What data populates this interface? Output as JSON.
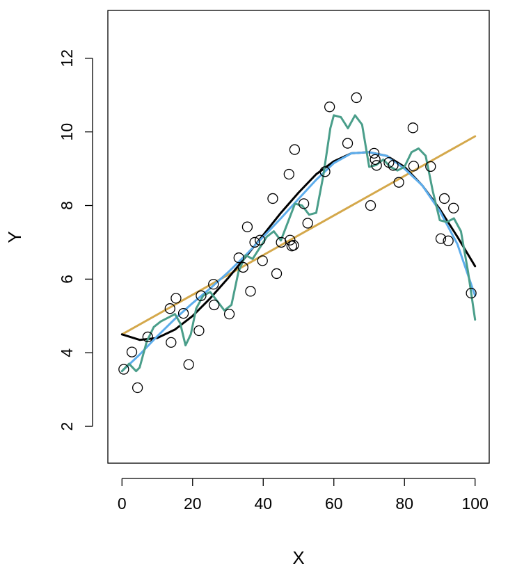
{
  "chart_data": {
    "type": "scatter",
    "xlabel": "X",
    "ylabel": "Y",
    "xlim": [
      -4,
      104
    ],
    "ylim": [
      1,
      13.3
    ],
    "x_ticks": [
      0,
      20,
      40,
      60,
      80,
      100
    ],
    "y_ticks": [
      2,
      4,
      6,
      8,
      10,
      12
    ],
    "grid": false,
    "legend": "none",
    "points": [
      [
        0.5,
        3.55
      ],
      [
        2.8,
        4.02
      ],
      [
        4.4,
        3.05
      ],
      [
        7.3,
        4.43
      ],
      [
        13.6,
        5.2
      ],
      [
        13.9,
        4.28
      ],
      [
        15.3,
        5.48
      ],
      [
        17.4,
        5.07
      ],
      [
        18.9,
        3.68
      ],
      [
        21.8,
        4.6
      ],
      [
        22.4,
        5.55
      ],
      [
        25.9,
        5.86
      ],
      [
        26.1,
        5.3
      ],
      [
        30.4,
        5.05
      ],
      [
        33.1,
        6.58
      ],
      [
        34.3,
        6.32
      ],
      [
        35.5,
        7.42
      ],
      [
        36.4,
        5.67
      ],
      [
        37.6,
        7.0
      ],
      [
        39.1,
        7.06
      ],
      [
        39.8,
        6.5
      ],
      [
        42.7,
        8.19
      ],
      [
        43.8,
        6.15
      ],
      [
        45.1,
        7.0
      ],
      [
        47.3,
        8.85
      ],
      [
        47.6,
        7.06
      ],
      [
        48.1,
        6.9
      ],
      [
        48.6,
        6.92
      ],
      [
        48.9,
        9.52
      ],
      [
        51.5,
        8.05
      ],
      [
        52.6,
        7.52
      ],
      [
        57.5,
        8.92
      ],
      [
        58.8,
        10.68
      ],
      [
        63.9,
        9.69
      ],
      [
        66.4,
        10.93
      ],
      [
        70.4,
        8.0
      ],
      [
        71.4,
        9.42
      ],
      [
        71.7,
        9.25
      ],
      [
        72.1,
        9.09
      ],
      [
        75.6,
        9.17
      ],
      [
        76.8,
        9.09
      ],
      [
        78.4,
        8.63
      ],
      [
        82.4,
        10.11
      ],
      [
        82.6,
        9.07
      ],
      [
        87.4,
        9.06
      ],
      [
        90.3,
        7.1
      ],
      [
        91.3,
        8.19
      ],
      [
        92.4,
        7.04
      ],
      [
        93.9,
        7.93
      ],
      [
        98.9,
        5.62
      ]
    ],
    "series": [
      {
        "color": "#D4A84B",
        "x": [
          0,
          100
        ],
        "y": [
          4.5,
          9.88
        ]
      },
      {
        "color": "#000000",
        "x": [
          0,
          5,
          10,
          15,
          20,
          25,
          30,
          35,
          40,
          45,
          50,
          55,
          60,
          65,
          70,
          75,
          80,
          85,
          90,
          95,
          100
        ],
        "y": [
          4.5,
          4.35,
          4.4,
          4.63,
          5.0,
          5.48,
          6.02,
          6.6,
          7.2,
          7.8,
          8.35,
          8.85,
          9.2,
          9.42,
          9.45,
          9.35,
          9.05,
          8.55,
          7.9,
          7.15,
          6.35
        ]
      },
      {
        "color": "#5DADEC",
        "x": [
          0,
          5,
          10,
          15,
          20,
          25,
          30,
          35,
          40,
          45,
          50,
          55,
          60,
          65,
          70,
          75,
          80,
          85,
          90,
          95,
          100
        ],
        "y": [
          3.5,
          3.95,
          4.45,
          4.92,
          5.35,
          5.75,
          6.18,
          6.65,
          7.15,
          7.65,
          8.18,
          8.7,
          9.15,
          9.42,
          9.45,
          9.35,
          9.0,
          8.55,
          7.85,
          6.95,
          5.55
        ]
      },
      {
        "color": "#4A9E8A",
        "x": [
          0,
          2,
          4,
          5,
          7,
          9,
          11,
          13,
          15,
          16.5,
          18,
          19.5,
          21,
          23,
          25,
          27,
          29,
          31,
          33,
          35,
          37,
          39,
          41,
          43,
          45,
          47,
          49,
          51,
          53,
          55,
          57,
          59,
          60,
          62,
          64,
          66,
          68,
          70,
          72,
          74,
          76,
          78,
          80,
          82,
          84,
          86,
          88,
          90,
          92,
          94,
          96,
          98,
          100
        ],
        "y": [
          3.5,
          3.7,
          3.5,
          3.6,
          4.3,
          4.7,
          4.85,
          4.95,
          5.05,
          4.8,
          4.2,
          4.5,
          5.2,
          5.55,
          5.65,
          5.4,
          5.15,
          5.3,
          6.2,
          6.65,
          6.55,
          6.85,
          7.15,
          7.3,
          7.05,
          7.55,
          8.05,
          8.0,
          7.75,
          7.8,
          8.8,
          10.1,
          10.45,
          10.4,
          10.1,
          10.45,
          10.2,
          9.05,
          9.1,
          9.25,
          9.05,
          8.95,
          9.05,
          9.45,
          9.55,
          9.35,
          8.4,
          7.6,
          7.55,
          7.65,
          7.3,
          6.2,
          4.9
        ]
      }
    ]
  }
}
